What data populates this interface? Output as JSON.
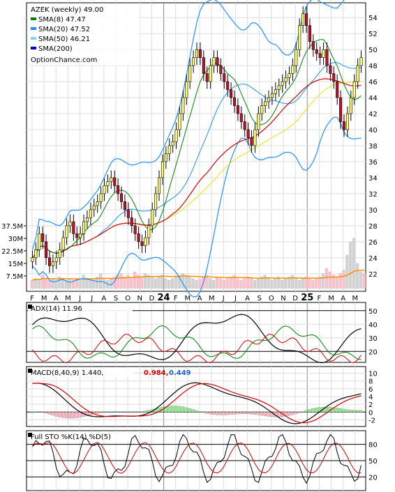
{
  "main": {
    "ticker_label": "AZEK (weekly) 49.00",
    "source": "OptionChance.com",
    "legend": [
      {
        "label": "SMA(8)",
        "value": "47.47",
        "color": "#008000"
      },
      {
        "label": "SMA(20)",
        "value": "47.52",
        "color": "#1e90ff"
      },
      {
        "label": "SMA(50)",
        "value": "46.21",
        "color": "#87cefa"
      },
      {
        "label": "SMA(200)",
        "value": "",
        "color": "#0000cd"
      }
    ],
    "bb_color": "#1e90ff",
    "sma8_color": "#008000",
    "sma50_color": "#e8e800",
    "sma200_color": "#d00000",
    "up_color": "#ffff66",
    "down_color": "#c0102a",
    "x_labels": [
      "F",
      "M",
      "A",
      "M",
      "J",
      "J",
      "A",
      "S",
      "O",
      "N",
      "D",
      "24",
      "F",
      "M",
      "A",
      "M",
      "J",
      "J",
      "A",
      "S",
      "O",
      "N",
      "D",
      "25",
      "F",
      "M",
      "A",
      "M"
    ],
    "price_ticks": [
      22,
      24,
      26,
      28,
      30,
      32,
      34,
      36,
      38,
      40,
      42,
      44,
      46,
      48,
      50,
      52,
      54
    ],
    "ylim": [
      20.5,
      55.5
    ],
    "volume_ticks": [
      "7.5M",
      "15M",
      "22.5M",
      "30M",
      "37.5M"
    ],
    "volume_color": "#ffc0cb",
    "volume_up_color": "#d3d3d3",
    "volume_avg_color": "#ff8c00"
  },
  "adx": {
    "label": "ADX(14) 11.96",
    "ticks": [
      20,
      30,
      40,
      50
    ],
    "adx_color": "#000000",
    "plus_color": "#008000",
    "minus_color": "#d00000"
  },
  "macd": {
    "label": "MACD(8,40,9) 1.440,",
    "signal_value": "0.984,",
    "hist_value": "0.449",
    "ticks": [
      -2,
      0,
      2,
      4,
      6,
      8,
      10
    ],
    "macd_color": "#000000",
    "signal_color": "#d00000",
    "hist_pos_color": "#90ee90",
    "hist_neg_color": "#ffb6c1"
  },
  "sto": {
    "label": "Full STO %K(14) %D(5)",
    "ticks": [
      20,
      50,
      80
    ],
    "k_color": "#000000",
    "d_color": "#d00000"
  },
  "chart_data": {
    "type": "candlestick",
    "title": "AZEK (weekly) 49.00",
    "period": "Feb 2023 - May 2025 (weekly)",
    "close_series_approx": [
      24,
      25,
      27,
      26,
      24,
      23,
      23.5,
      24,
      25,
      26.5,
      28,
      28.5,
      27,
      26.5,
      27,
      28.5,
      29,
      30,
      30.5,
      31,
      32,
      33,
      33.5,
      34,
      33,
      32,
      31,
      30,
      29,
      28,
      27,
      26,
      25.5,
      26.5,
      28,
      30,
      32,
      34,
      36,
      37,
      38,
      38.5,
      40,
      42,
      44,
      46,
      48,
      49,
      50,
      49,
      47,
      46,
      48,
      49,
      48,
      47,
      46,
      45,
      44,
      43,
      42,
      41,
      40,
      39,
      38,
      40,
      42,
      43,
      43.5,
      44,
      44.5,
      45,
      45.5,
      46,
      46.5,
      47,
      48,
      50,
      53,
      54.5,
      53,
      51,
      50,
      49.5,
      49,
      50,
      48,
      47,
      46,
      44,
      41,
      40,
      42,
      44,
      46,
      48,
      49
    ],
    "volume_series_m_approx": [
      5,
      6,
      5,
      8,
      6,
      5,
      6,
      5,
      7,
      6,
      5,
      6,
      5,
      6,
      5,
      8,
      6,
      5,
      6,
      7,
      9,
      6,
      5,
      6,
      7,
      8,
      9,
      7,
      8,
      6,
      10,
      8,
      7,
      9,
      8,
      7,
      6,
      7,
      8,
      6,
      5,
      6,
      7,
      8,
      9,
      8,
      7,
      6,
      5,
      6,
      7,
      8,
      6,
      5,
      7,
      6,
      5,
      6,
      7,
      8,
      6,
      5,
      6,
      7,
      6,
      5,
      6,
      7,
      8,
      6,
      5,
      6,
      7,
      5,
      6,
      7,
      8,
      6,
      5,
      6,
      7,
      6,
      5,
      6,
      7,
      9,
      12,
      10,
      8,
      7,
      9,
      11,
      20,
      28,
      30,
      15,
      10,
      9
    ],
    "indicators": {
      "SMA(8)": 47.47,
      "SMA(20)": 47.52,
      "SMA(50)": 46.21,
      "ADX(14)": 11.96,
      "MACD(8,40,9)": [
        1.44,
        0.984,
        0.449
      ]
    }
  }
}
